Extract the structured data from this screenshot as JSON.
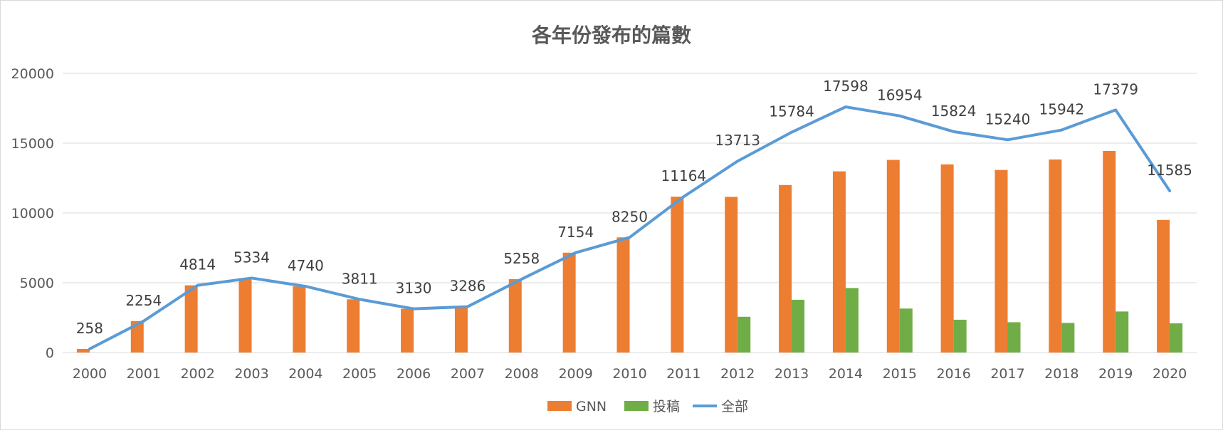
{
  "chart_data": {
    "type": "bar",
    "title": "各年份發布的篇數",
    "categories": [
      "2000",
      "2001",
      "2002",
      "2003",
      "2004",
      "2005",
      "2006",
      "2007",
      "2008",
      "2009",
      "2010",
      "2011",
      "2012",
      "2013",
      "2014",
      "2015",
      "2016",
      "2017",
      "2018",
      "2019",
      "2020"
    ],
    "series": [
      {
        "name": "GNN",
        "type": "bar",
        "color": "#ed7d31",
        "values": [
          258,
          2254,
          4814,
          5334,
          4740,
          3811,
          3130,
          3286,
          5258,
          7154,
          8250,
          11164,
          11150,
          12000,
          12980,
          13800,
          13480,
          13080,
          13830,
          14440,
          9500
        ]
      },
      {
        "name": "投稿",
        "type": "bar",
        "color": "#70ad47",
        "values": [
          0,
          0,
          0,
          0,
          0,
          0,
          0,
          0,
          0,
          0,
          0,
          0,
          2560,
          3780,
          4620,
          3150,
          2350,
          2170,
          2120,
          2940,
          2090
        ]
      },
      {
        "name": "全部",
        "type": "line",
        "color": "#5b9bd5",
        "values": [
          258,
          2254,
          4814,
          5334,
          4740,
          3811,
          3130,
          3286,
          5258,
          7154,
          8250,
          11164,
          13713,
          15784,
          17598,
          16954,
          15824,
          15240,
          15942,
          17379,
          11585
        ],
        "data_labels": [
          "258",
          "2254",
          "4814",
          "5334",
          "4740",
          "3811",
          "3130",
          "3286",
          "5258",
          "7154",
          "8250",
          "11164",
          "13713",
          "15784",
          "17598",
          "16954",
          "15824",
          "15240",
          "15942",
          "17379",
          "11585"
        ]
      }
    ],
    "y_ticks": [
      "0",
      "5000",
      "10000",
      "15000",
      "20000"
    ],
    "ylim": [
      0,
      20000
    ],
    "grid": true,
    "legend_position": "bottom"
  }
}
